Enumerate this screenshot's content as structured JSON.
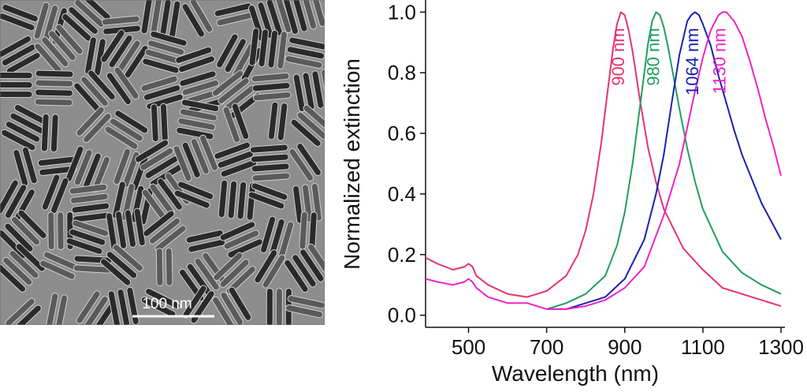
{
  "micrograph": {
    "scale_bar_label": "100 nm"
  },
  "chart_data": {
    "type": "line",
    "title": "",
    "xlabel": "Wavelength (nm)",
    "ylabel": "Normalized extinction",
    "xlim": [
      390,
      1310
    ],
    "ylim": [
      -0.04,
      1.04
    ],
    "xticks": [
      500,
      700,
      900,
      1100,
      1300
    ],
    "yticks": [
      0.0,
      0.2,
      0.4,
      0.6,
      0.8,
      1.0
    ],
    "ytick_labels": [
      "0.0",
      "0.2",
      "0.4",
      "0.6",
      "0.8",
      "1.0"
    ],
    "grid": false,
    "legend": "none",
    "annotations": [
      {
        "text": "900 nm",
        "color": "#e8336b",
        "series": 0
      },
      {
        "text": "980 nm",
        "color": "#1f9e5f",
        "series": 1
      },
      {
        "text": "1064 nm",
        "color": "#1a22b0",
        "series": 2
      },
      {
        "text": "1130 nm",
        "color": "#ee22c8",
        "series": 3
      }
    ],
    "series": [
      {
        "color": "#e8336b",
        "x": [
          390,
          420,
          460,
          490,
          500,
          510,
          520,
          550,
          600,
          650,
          700,
          750,
          780,
          800,
          820,
          840,
          860,
          870,
          880,
          890,
          900,
          910,
          920,
          940,
          960,
          980,
          1000,
          1050,
          1100,
          1150,
          1200,
          1250,
          1300
        ],
        "y": [
          0.19,
          0.17,
          0.15,
          0.16,
          0.17,
          0.16,
          0.13,
          0.1,
          0.07,
          0.06,
          0.08,
          0.13,
          0.2,
          0.28,
          0.4,
          0.57,
          0.78,
          0.88,
          0.96,
          1.0,
          0.99,
          0.94,
          0.87,
          0.7,
          0.55,
          0.44,
          0.35,
          0.22,
          0.15,
          0.09,
          0.07,
          0.05,
          0.03
        ]
      },
      {
        "color": "#1f9e5f",
        "x": [
          700,
          750,
          800,
          850,
          880,
          900,
          920,
          940,
          950,
          960,
          970,
          980,
          990,
          1000,
          1010,
          1020,
          1040,
          1060,
          1080,
          1100,
          1150,
          1200,
          1250,
          1300
        ],
        "y": [
          0.02,
          0.04,
          0.07,
          0.13,
          0.23,
          0.34,
          0.5,
          0.7,
          0.8,
          0.9,
          0.97,
          1.0,
          0.99,
          0.95,
          0.89,
          0.82,
          0.68,
          0.55,
          0.44,
          0.35,
          0.21,
          0.14,
          0.1,
          0.07
        ]
      },
      {
        "color": "#1a22b0",
        "x": [
          700,
          750,
          800,
          850,
          900,
          950,
          980,
          1000,
          1020,
          1040,
          1060,
          1070,
          1080,
          1090,
          1100,
          1120,
          1140,
          1160,
          1180,
          1200,
          1250,
          1300
        ],
        "y": [
          0.02,
          0.02,
          0.04,
          0.06,
          0.12,
          0.25,
          0.4,
          0.53,
          0.7,
          0.86,
          0.97,
          0.99,
          1.0,
          0.99,
          0.96,
          0.89,
          0.79,
          0.7,
          0.61,
          0.53,
          0.37,
          0.25
        ]
      },
      {
        "color": "#ee22c8",
        "x": [
          390,
          420,
          460,
          490,
          500,
          510,
          520,
          550,
          600,
          650,
          700,
          750,
          800,
          850,
          900,
          950,
          1000,
          1040,
          1060,
          1080,
          1100,
          1120,
          1140,
          1150,
          1160,
          1180,
          1200,
          1220,
          1240,
          1260,
          1280,
          1300
        ],
        "y": [
          0.12,
          0.11,
          0.1,
          0.11,
          0.12,
          0.11,
          0.09,
          0.06,
          0.04,
          0.04,
          0.02,
          0.02,
          0.03,
          0.05,
          0.09,
          0.16,
          0.33,
          0.5,
          0.62,
          0.74,
          0.85,
          0.94,
          0.99,
          1.0,
          1.0,
          0.97,
          0.92,
          0.84,
          0.75,
          0.65,
          0.56,
          0.46
        ]
      }
    ]
  }
}
